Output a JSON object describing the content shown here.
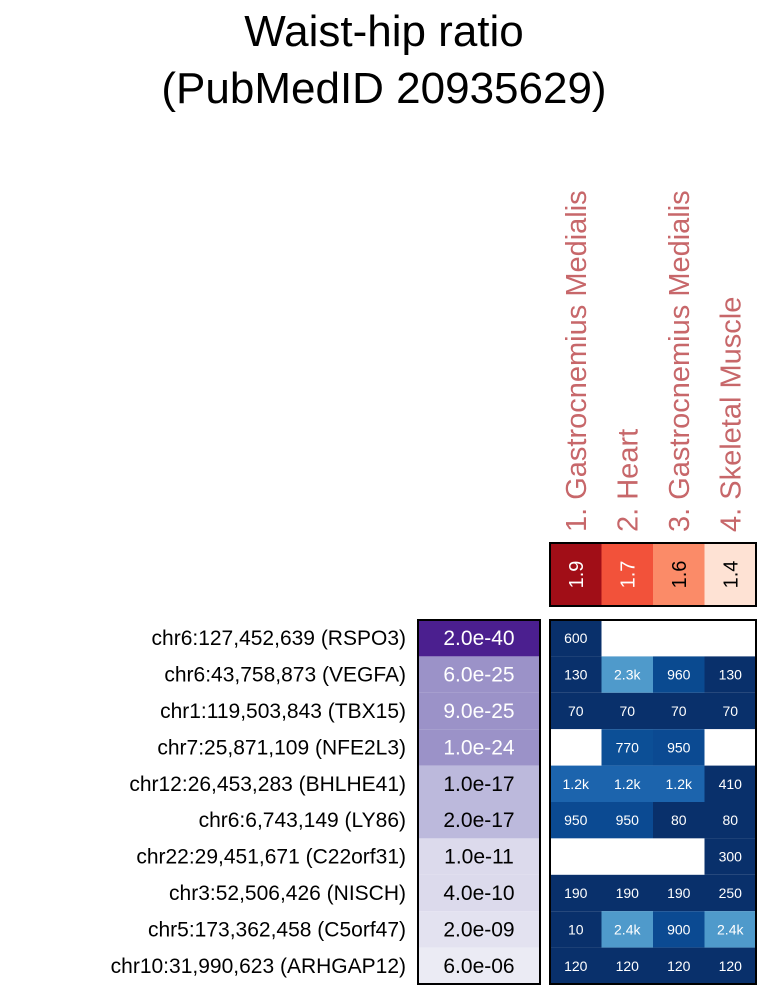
{
  "chart_data": {
    "type": "heatmap",
    "title_lines": [
      "Waist-hip ratio",
      "(PubMedID 20935629)"
    ],
    "loci": [
      "chr6:127,452,639 (RSPO3)",
      "chr6:43,758,873 (VEGFA)",
      "chr1:119,503,843 (TBX15)",
      "chr7:25,871,109 (NFE2L3)",
      "chr12:26,453,283 (BHLHE41)",
      "chr6:6,743,149 (LY86)",
      "chr22:29,451,671 (C22orf31)",
      "chr3:52,506,426 (NISCH)",
      "chr5:173,362,458 (C5orf47)",
      "chr10:31,990,623 (ARHGAP12)"
    ],
    "pvalues": [
      "2.0e-40",
      "6.0e-25",
      "9.0e-25",
      "1.0e-24",
      "1.0e-17",
      "2.0e-17",
      "1.0e-11",
      "4.0e-10",
      "2.0e-09",
      "6.0e-06"
    ],
    "pvalue_colors": [
      "#4b1f8f",
      "#9b92c8",
      "#9b92c8",
      "#9b92c8",
      "#bcb9dc",
      "#bcb9dc",
      "#dcdaec",
      "#dcdaec",
      "#e3e2f0",
      "#ebebf4"
    ],
    "pvalue_text_colors": [
      "#ffffff",
      "#ffffff",
      "#ffffff",
      "#ffffff",
      "#000000",
      "#000000",
      "#000000",
      "#000000",
      "#000000",
      "#000000"
    ],
    "tissues": [
      "1. Gastrocnemius Medialis",
      "2. Heart",
      "3. Gastrocnemius Medialis",
      "4. Skeletal Muscle"
    ],
    "enrichment": [
      "1.9",
      "1.7",
      "1.6",
      "1.4"
    ],
    "enrichment_colors": [
      "#a10e17",
      "#f2523a",
      "#fb8b68",
      "#fee2d4"
    ],
    "enrichment_text_colors": [
      "#ffffff",
      "#ffffff",
      "#000000",
      "#000000"
    ],
    "cells": [
      [
        "600",
        "",
        "",
        ""
      ],
      [
        "130",
        "2.3k",
        "960",
        "130"
      ],
      [
        "70",
        "70",
        "70",
        "70"
      ],
      [
        "",
        "770",
        "950",
        ""
      ],
      [
        "1.2k",
        "1.2k",
        "1.2k",
        "410"
      ],
      [
        "950",
        "950",
        "80",
        "80"
      ],
      [
        "",
        "",
        "",
        "300"
      ],
      [
        "190",
        "190",
        "190",
        "250"
      ],
      [
        "10",
        "2.4k",
        "900",
        "2.4k"
      ],
      [
        "120",
        "120",
        "120",
        "120"
      ]
    ],
    "cell_colors": [
      [
        "#09306b",
        "#ffffff",
        "#ffffff",
        "#ffffff"
      ],
      [
        "#09306b",
        "#4f9acb",
        "#0a4a90",
        "#09306b"
      ],
      [
        "#09306b",
        "#09306b",
        "#09306b",
        "#09306b"
      ],
      [
        "#ffffff",
        "#0c4f96",
        "#0b4a92",
        "#ffffff"
      ],
      [
        "#1c64ad",
        "#1c64ad",
        "#1c64ad",
        "#09306b"
      ],
      [
        "#0b4a92",
        "#0b4a92",
        "#09306b",
        "#09306b"
      ],
      [
        "#ffffff",
        "#ffffff",
        "#ffffff",
        "#09306b"
      ],
      [
        "#09306b",
        "#09306b",
        "#09306b",
        "#09306b"
      ],
      [
        "#09306b",
        "#4f9acb",
        "#0b4a92",
        "#4f9acb"
      ],
      [
        "#09306b",
        "#09306b",
        "#09306b",
        "#09306b"
      ]
    ]
  }
}
